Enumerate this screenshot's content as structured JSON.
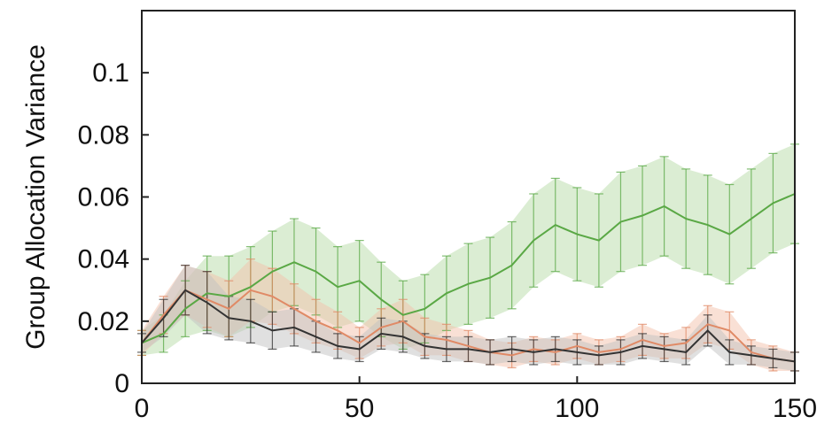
{
  "chart_data": {
    "type": "line",
    "title": "",
    "xlabel": "",
    "ylabel": "Group Allocation Variance",
    "xlim": [
      0,
      150
    ],
    "ylim": [
      0,
      0.12
    ],
    "xticks": [
      0,
      50,
      100,
      150
    ],
    "yticks": [
      0,
      0.02,
      0.04,
      0.06,
      0.08,
      0.1
    ],
    "ytick_labels": [
      "0",
      "0.02",
      "0.04",
      "0.06",
      "0.08",
      "0.1"
    ],
    "grid": false,
    "legend": "none",
    "error_bars": true,
    "series": [
      {
        "color": "#5aa845",
        "fill": "#b8dca8",
        "x": [
          0,
          5,
          10,
          15,
          20,
          25,
          30,
          35,
          40,
          45,
          50,
          55,
          60,
          65,
          70,
          75,
          80,
          85,
          90,
          95,
          100,
          105,
          110,
          115,
          120,
          125,
          130,
          135,
          140,
          145,
          150
        ],
        "y": [
          0.013,
          0.016,
          0.024,
          0.029,
          0.028,
          0.031,
          0.036,
          0.039,
          0.036,
          0.031,
          0.033,
          0.027,
          0.022,
          0.024,
          0.029,
          0.032,
          0.034,
          0.038,
          0.046,
          0.051,
          0.048,
          0.046,
          0.052,
          0.054,
          0.057,
          0.053,
          0.051,
          0.048,
          0.053,
          0.058,
          0.061
        ],
        "err": [
          0.004,
          0.006,
          0.009,
          0.012,
          0.013,
          0.013,
          0.013,
          0.014,
          0.014,
          0.013,
          0.013,
          0.012,
          0.011,
          0.011,
          0.012,
          0.013,
          0.013,
          0.014,
          0.015,
          0.015,
          0.015,
          0.015,
          0.016,
          0.016,
          0.016,
          0.016,
          0.016,
          0.016,
          0.016,
          0.016,
          0.016
        ]
      },
      {
        "color": "#e08a66",
        "fill": "#f3c1ac",
        "x": [
          0,
          5,
          10,
          15,
          20,
          25,
          30,
          35,
          40,
          45,
          50,
          55,
          60,
          65,
          70,
          75,
          80,
          85,
          90,
          95,
          100,
          105,
          110,
          115,
          120,
          125,
          130,
          135,
          140,
          145,
          150
        ],
        "y": [
          0.013,
          0.022,
          0.03,
          0.027,
          0.024,
          0.03,
          0.028,
          0.024,
          0.02,
          0.017,
          0.013,
          0.018,
          0.02,
          0.015,
          0.014,
          0.012,
          0.01,
          0.009,
          0.011,
          0.01,
          0.012,
          0.01,
          0.011,
          0.014,
          0.012,
          0.013,
          0.019,
          0.017,
          0.01,
          0.008,
          0.007
        ],
        "err": [
          0.004,
          0.006,
          0.008,
          0.009,
          0.009,
          0.01,
          0.009,
          0.008,
          0.007,
          0.006,
          0.005,
          0.006,
          0.007,
          0.006,
          0.005,
          0.005,
          0.004,
          0.004,
          0.004,
          0.004,
          0.004,
          0.004,
          0.004,
          0.005,
          0.004,
          0.005,
          0.006,
          0.006,
          0.004,
          0.004,
          0.003
        ]
      },
      {
        "color": "#333333",
        "fill": "#c2c2c2",
        "x": [
          0,
          5,
          10,
          15,
          20,
          25,
          30,
          35,
          40,
          45,
          50,
          55,
          60,
          65,
          70,
          75,
          80,
          85,
          90,
          95,
          100,
          105,
          110,
          115,
          120,
          125,
          130,
          135,
          140,
          145,
          150
        ],
        "y": [
          0.013,
          0.021,
          0.03,
          0.026,
          0.021,
          0.02,
          0.017,
          0.018,
          0.015,
          0.012,
          0.011,
          0.016,
          0.015,
          0.012,
          0.011,
          0.011,
          0.01,
          0.011,
          0.01,
          0.011,
          0.01,
          0.009,
          0.01,
          0.012,
          0.011,
          0.01,
          0.017,
          0.01,
          0.009,
          0.008,
          0.007
        ],
        "err": [
          0.003,
          0.006,
          0.008,
          0.01,
          0.007,
          0.007,
          0.006,
          0.006,
          0.005,
          0.004,
          0.004,
          0.005,
          0.005,
          0.004,
          0.004,
          0.004,
          0.004,
          0.004,
          0.004,
          0.004,
          0.004,
          0.003,
          0.004,
          0.004,
          0.004,
          0.004,
          0.005,
          0.004,
          0.003,
          0.003,
          0.003
        ]
      }
    ]
  }
}
